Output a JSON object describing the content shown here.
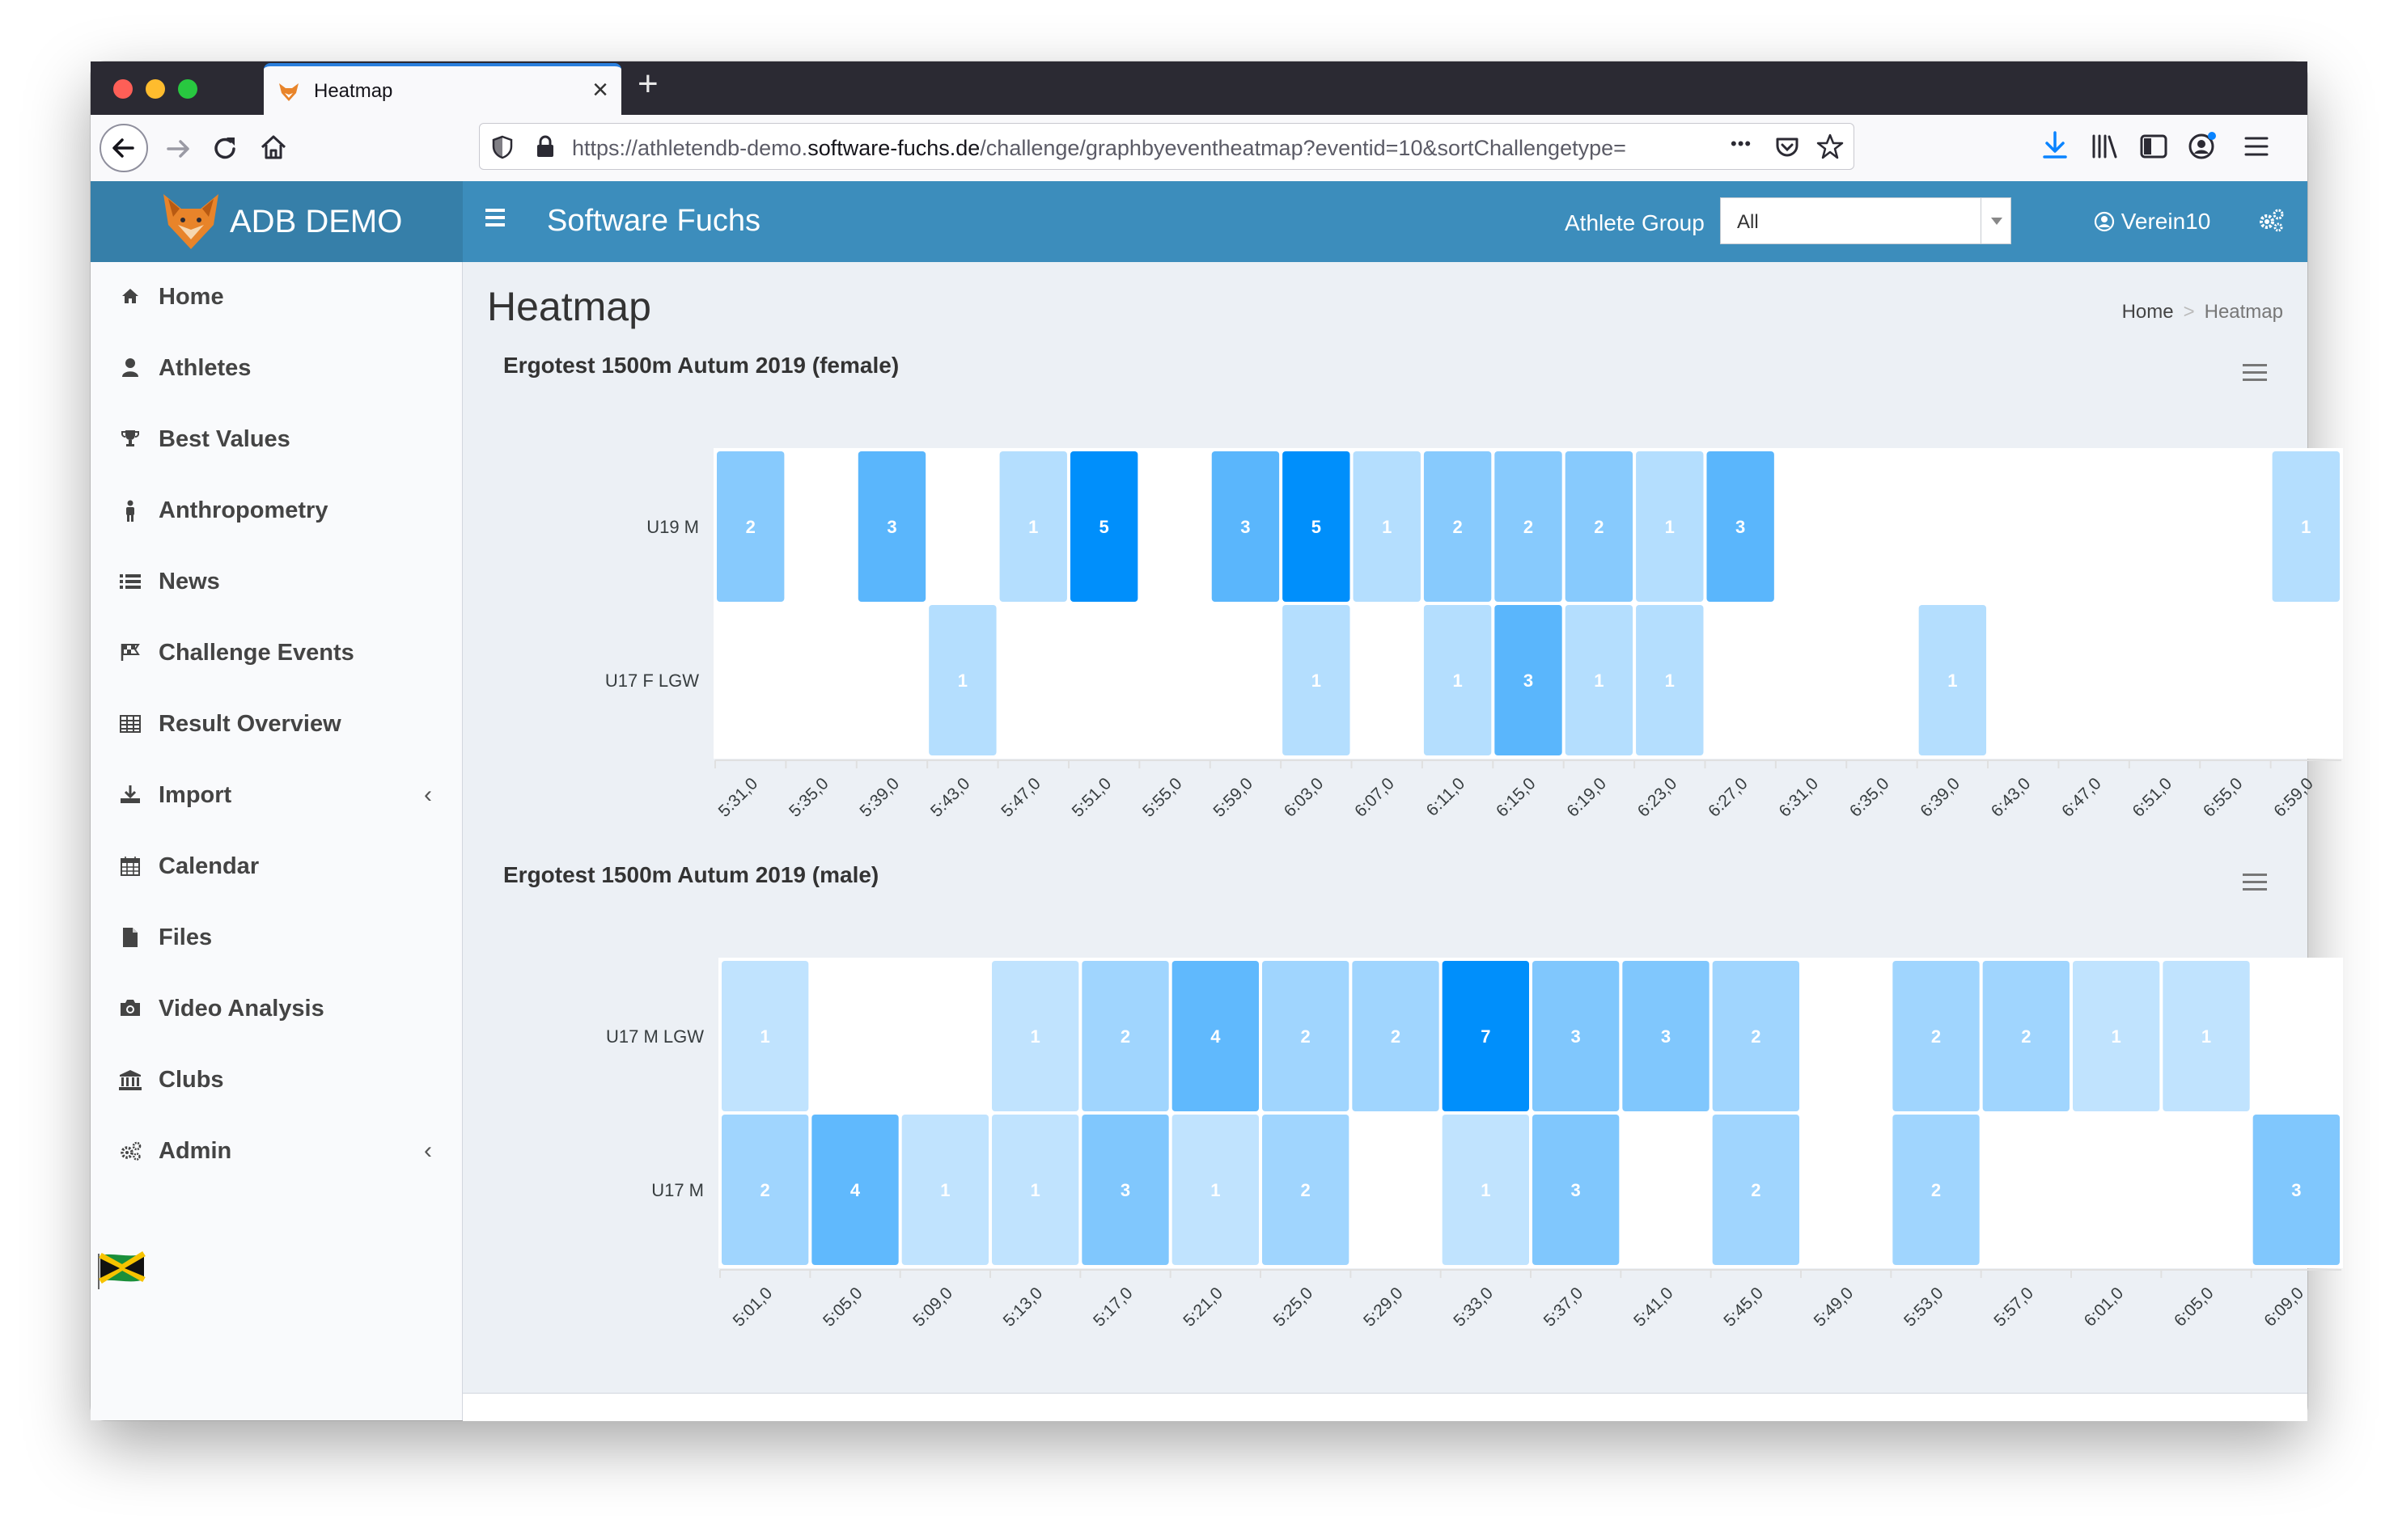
{
  "browser": {
    "tab_title": "Heatmap",
    "url_prefix": "https://athletendb-demo.",
    "url_domain": "software-fuchs.de",
    "url_path": "/challenge/graphbyeventheatmap?eventid=10&sortChallengetype=",
    "more_dots": "•••"
  },
  "header": {
    "brand": "ADB DEMO",
    "app_name": "Software Fuchs",
    "athlete_group_label": "Athlete Group",
    "athlete_group_value": "All",
    "user_name": "Verein10"
  },
  "sidebar": {
    "items": [
      {
        "label": "Home",
        "icon": "home-icon"
      },
      {
        "label": "Athletes",
        "icon": "user-icon"
      },
      {
        "label": "Best Values",
        "icon": "trophy-icon"
      },
      {
        "label": "Anthropometry",
        "icon": "person-icon"
      },
      {
        "label": "News",
        "icon": "list-icon"
      },
      {
        "label": "Challenge Events",
        "icon": "flag-icon"
      },
      {
        "label": "Result Overview",
        "icon": "table-icon"
      },
      {
        "label": "Import",
        "icon": "download-icon",
        "chevron": "‹"
      },
      {
        "label": "Calendar",
        "icon": "calendar-icon"
      },
      {
        "label": "Files",
        "icon": "file-icon"
      },
      {
        "label": "Video Analysis",
        "icon": "camera-icon"
      },
      {
        "label": "Clubs",
        "icon": "bank-icon"
      },
      {
        "label": "Admin",
        "icon": "gears-icon",
        "chevron": "‹"
      }
    ]
  },
  "page": {
    "title": "Heatmap",
    "breadcrumb_home": "Home",
    "breadcrumb_sep": ">",
    "breadcrumb_current": "Heatmap"
  },
  "chart_data": [
    {
      "type": "heatmap",
      "title": "Ergotest 1500m Autum 2019 (female)",
      "rows": [
        "U19 M",
        "U17 F LGW"
      ],
      "columns": [
        "5:31,0",
        "5:35,0",
        "5:39,0",
        "5:43,0",
        "5:47,0",
        "5:51,0",
        "5:55,0",
        "5:59,0",
        "6:03,0",
        "6:07,0",
        "6:11,0",
        "6:15,0",
        "6:19,0",
        "6:23,0",
        "6:27,0",
        "6:31,0",
        "6:35,0",
        "6:39,0",
        "6:43,0",
        "6:47,0",
        "6:51,0",
        "6:55,0",
        "6:59,0"
      ],
      "values": [
        [
          2,
          0,
          3,
          0,
          1,
          5,
          0,
          3,
          5,
          1,
          2,
          2,
          2,
          1,
          3,
          0,
          0,
          0,
          0,
          0,
          0,
          0,
          1
        ],
        [
          0,
          0,
          0,
          1,
          0,
          0,
          0,
          0,
          1,
          0,
          1,
          3,
          1,
          1,
          0,
          0,
          0,
          1,
          0,
          0,
          0,
          0,
          0
        ]
      ],
      "color_scale": [
        "#ffffff",
        "#008ffb"
      ]
    },
    {
      "type": "heatmap",
      "title": "Ergotest 1500m Autum 2019 (male)",
      "rows": [
        "U17 M LGW",
        "U17 M"
      ],
      "columns": [
        "5:01,0",
        "5:05,0",
        "5:09,0",
        "5:13,0",
        "5:17,0",
        "5:21,0",
        "5:25,0",
        "5:29,0",
        "5:33,0",
        "5:37,0",
        "5:41,0",
        "5:45,0",
        "5:49,0",
        "5:53,0",
        "5:57,0",
        "6:01,0",
        "6:05,0",
        "6:09,0"
      ],
      "values": [
        [
          1,
          0,
          0,
          1,
          2,
          4,
          2,
          2,
          7,
          3,
          3,
          2,
          0,
          2,
          2,
          1,
          1,
          0
        ],
        [
          2,
          4,
          1,
          1,
          3,
          1,
          2,
          0,
          1,
          3,
          0,
          2,
          0,
          2,
          0,
          0,
          0,
          3
        ]
      ],
      "color_scale": [
        "#ffffff",
        "#008ffb"
      ]
    }
  ]
}
